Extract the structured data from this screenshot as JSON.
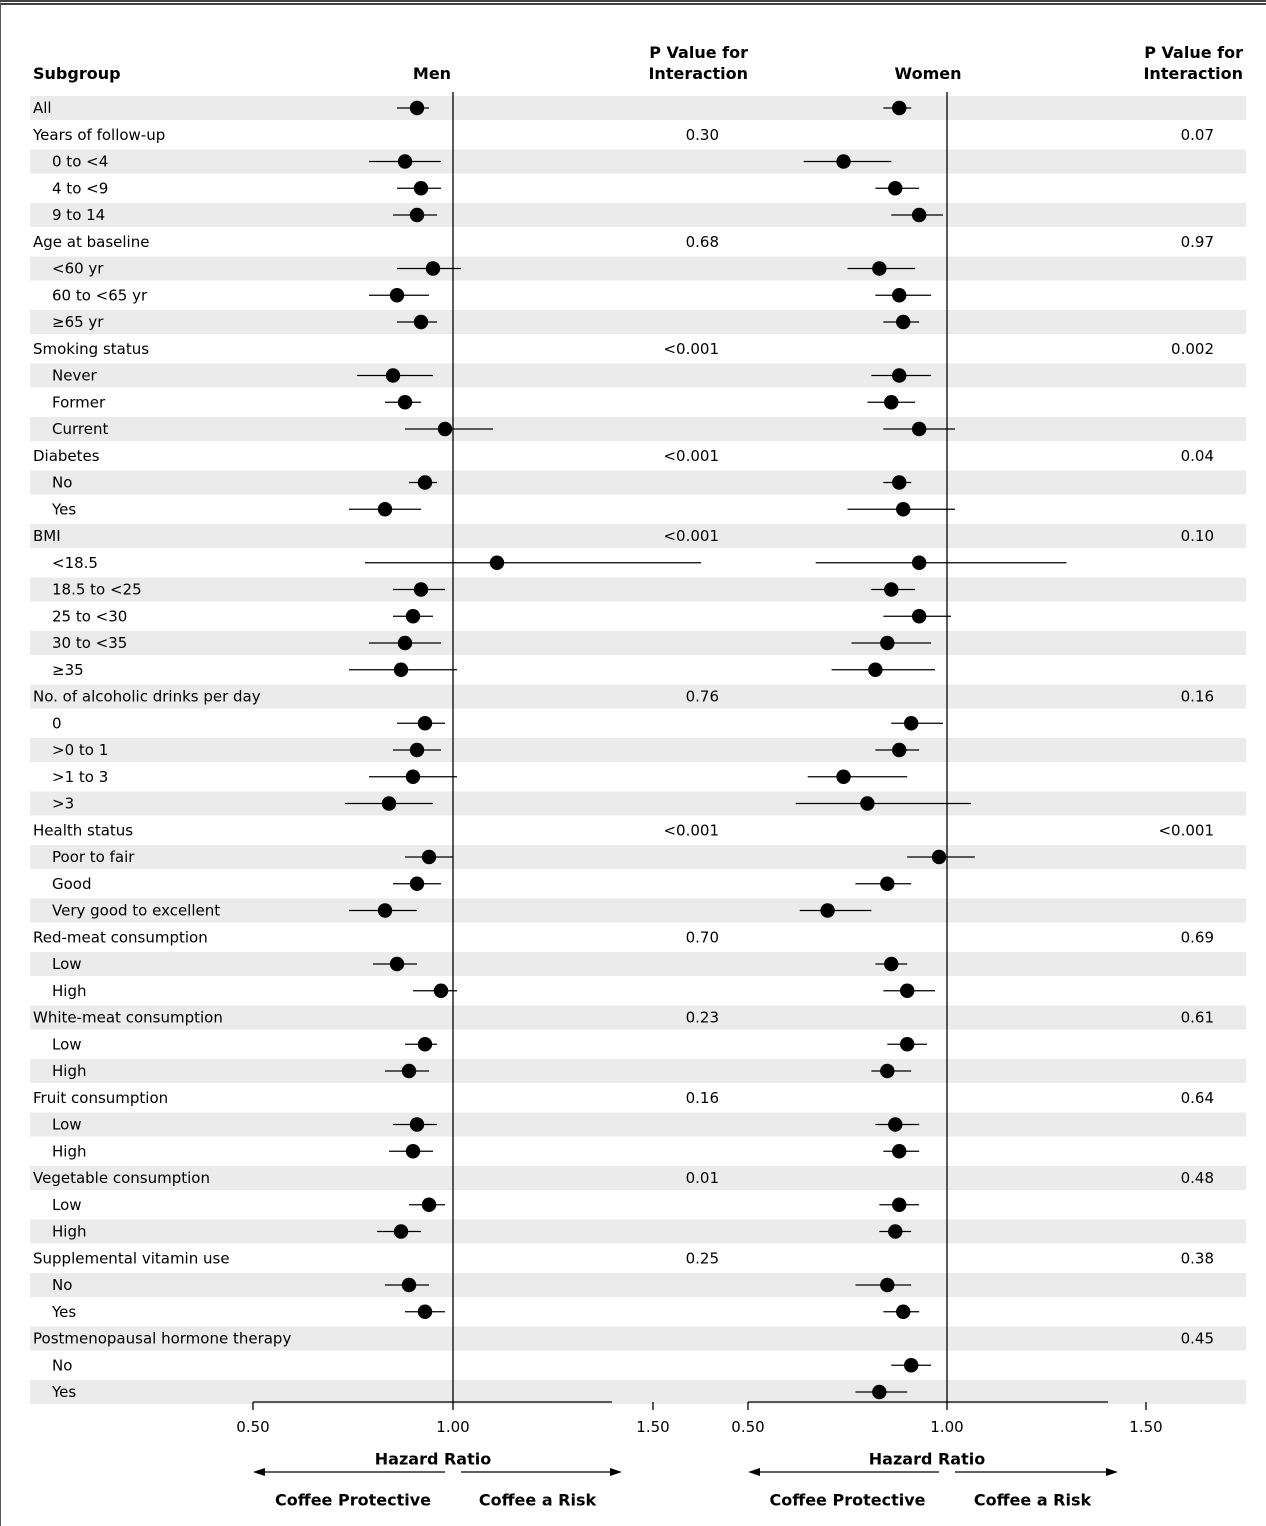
{
  "headers": {
    "subgroup": "Subgroup",
    "men": "Men",
    "women": "Women",
    "p_men_line1": "P Value for",
    "p_men_line2": "Interaction",
    "p_women_line1": "P Value for",
    "p_women_line2": "Interaction"
  },
  "axis": {
    "ticks": [
      "0.50",
      "1.00",
      "1.50"
    ],
    "tick_values": [
      0.5,
      1.0,
      1.5
    ],
    "xlabel": "Hazard Ratio",
    "left_arrow_label": "Coffee Protective",
    "right_arrow_label": "Coffee a Risk",
    "reference": 1.0,
    "xlim": [
      0.5,
      1.65
    ]
  },
  "colors": {
    "stripe": "#ebebeb",
    "ink": "#000000",
    "frame": "#444444"
  },
  "chart_data": {
    "type": "forest",
    "xlabel": "Hazard Ratio",
    "panels": [
      "Men",
      "Women"
    ],
    "rows": [
      {
        "label": "All",
        "indent": 0,
        "p_men": "",
        "p_women": "",
        "men": [
          0.91,
          0.86,
          0.94
        ],
        "women": [
          0.88,
          0.84,
          0.91
        ]
      },
      {
        "label": "Years of follow-up",
        "indent": 0,
        "p_men": "0.30",
        "p_women": "0.07",
        "men": null,
        "women": null
      },
      {
        "label": "0 to <4",
        "indent": 1,
        "p_men": "",
        "p_women": "",
        "men": [
          0.88,
          0.79,
          0.97
        ],
        "women": [
          0.74,
          0.64,
          0.86
        ]
      },
      {
        "label": "4 to <9",
        "indent": 1,
        "p_men": "",
        "p_women": "",
        "men": [
          0.92,
          0.86,
          0.97
        ],
        "women": [
          0.87,
          0.82,
          0.93
        ]
      },
      {
        "label": "9 to 14",
        "indent": 1,
        "p_men": "",
        "p_women": "",
        "men": [
          0.91,
          0.85,
          0.96
        ],
        "women": [
          0.93,
          0.86,
          0.99
        ]
      },
      {
        "label": "Age at baseline",
        "indent": 0,
        "p_men": "0.68",
        "p_women": "0.97",
        "men": null,
        "women": null
      },
      {
        "label": "<60 yr",
        "indent": 1,
        "p_men": "",
        "p_women": "",
        "men": [
          0.95,
          0.86,
          1.02
        ],
        "women": [
          0.83,
          0.75,
          0.92
        ]
      },
      {
        "label": "60 to <65 yr",
        "indent": 1,
        "p_men": "",
        "p_women": "",
        "men": [
          0.86,
          0.79,
          0.94
        ],
        "women": [
          0.88,
          0.82,
          0.96
        ]
      },
      {
        "label": "≥65 yr",
        "indent": 1,
        "p_men": "",
        "p_women": "",
        "men": [
          0.92,
          0.86,
          0.96
        ],
        "women": [
          0.89,
          0.84,
          0.93
        ]
      },
      {
        "label": "Smoking status",
        "indent": 0,
        "p_men": "<0.001",
        "p_women": "0.002",
        "men": null,
        "women": null
      },
      {
        "label": "Never",
        "indent": 1,
        "p_men": "",
        "p_women": "",
        "men": [
          0.85,
          0.76,
          0.95
        ],
        "women": [
          0.88,
          0.81,
          0.96
        ]
      },
      {
        "label": "Former",
        "indent": 1,
        "p_men": "",
        "p_women": "",
        "men": [
          0.88,
          0.83,
          0.92
        ],
        "women": [
          0.86,
          0.8,
          0.92
        ]
      },
      {
        "label": "Current",
        "indent": 1,
        "p_men": "",
        "p_women": "",
        "men": [
          0.98,
          0.88,
          1.1
        ],
        "women": [
          0.93,
          0.84,
          1.02
        ]
      },
      {
        "label": "Diabetes",
        "indent": 0,
        "p_men": "<0.001",
        "p_women": "0.04",
        "men": null,
        "women": null
      },
      {
        "label": "No",
        "indent": 1,
        "p_men": "",
        "p_women": "",
        "men": [
          0.93,
          0.89,
          0.96
        ],
        "women": [
          0.88,
          0.84,
          0.91
        ]
      },
      {
        "label": "Yes",
        "indent": 1,
        "p_men": "",
        "p_women": "",
        "men": [
          0.83,
          0.74,
          0.92
        ],
        "women": [
          0.89,
          0.75,
          1.02
        ]
      },
      {
        "label": "BMI",
        "indent": 0,
        "p_men": "<0.001",
        "p_women": "0.10",
        "men": null,
        "women": null
      },
      {
        "label": "<18.5",
        "indent": 1,
        "p_men": "",
        "p_women": "",
        "men": [
          1.11,
          0.78,
          1.62
        ],
        "women": [
          0.93,
          0.67,
          1.3
        ]
      },
      {
        "label": "18.5 to <25",
        "indent": 1,
        "p_men": "",
        "p_women": "",
        "men": [
          0.92,
          0.85,
          0.98
        ],
        "women": [
          0.86,
          0.81,
          0.92
        ]
      },
      {
        "label": "25 to <30",
        "indent": 1,
        "p_men": "",
        "p_women": "",
        "men": [
          0.9,
          0.85,
          0.95
        ],
        "women": [
          0.93,
          0.84,
          1.01
        ]
      },
      {
        "label": "30 to <35",
        "indent": 1,
        "p_men": "",
        "p_women": "",
        "men": [
          0.88,
          0.79,
          0.97
        ],
        "women": [
          0.85,
          0.76,
          0.96
        ]
      },
      {
        "label": "≥35",
        "indent": 1,
        "p_men": "",
        "p_women": "",
        "men": [
          0.87,
          0.74,
          1.01
        ],
        "women": [
          0.82,
          0.71,
          0.97
        ]
      },
      {
        "label": "No. of alcoholic drinks per day",
        "indent": 0,
        "p_men": "0.76",
        "p_women": "0.16",
        "men": null,
        "women": null
      },
      {
        "label": "0",
        "indent": 1,
        "p_men": "",
        "p_women": "",
        "men": [
          0.93,
          0.86,
          0.98
        ],
        "women": [
          0.91,
          0.86,
          0.99
        ]
      },
      {
        "label": ">0 to 1",
        "indent": 1,
        "p_men": "",
        "p_women": "",
        "men": [
          0.91,
          0.85,
          0.97
        ],
        "women": [
          0.88,
          0.82,
          0.93
        ]
      },
      {
        "label": ">1 to 3",
        "indent": 1,
        "p_men": "",
        "p_women": "",
        "men": [
          0.9,
          0.79,
          1.01
        ],
        "women": [
          0.74,
          0.65,
          0.9
        ]
      },
      {
        "label": ">3",
        "indent": 1,
        "p_men": "",
        "p_women": "",
        "men": [
          0.84,
          0.73,
          0.95
        ],
        "women": [
          0.8,
          0.62,
          1.06
        ]
      },
      {
        "label": "Health status",
        "indent": 0,
        "p_men": "<0.001",
        "p_women": "<0.001",
        "men": null,
        "women": null
      },
      {
        "label": "Poor to fair",
        "indent": 1,
        "p_men": "",
        "p_women": "",
        "men": [
          0.94,
          0.88,
          1.0
        ],
        "women": [
          0.98,
          0.9,
          1.07
        ]
      },
      {
        "label": "Good",
        "indent": 1,
        "p_men": "",
        "p_women": "",
        "men": [
          0.91,
          0.85,
          0.97
        ],
        "women": [
          0.85,
          0.77,
          0.91
        ]
      },
      {
        "label": "Very good to excellent",
        "indent": 1,
        "p_men": "",
        "p_women": "",
        "men": [
          0.83,
          0.74,
          0.91
        ],
        "women": [
          0.7,
          0.63,
          0.81
        ]
      },
      {
        "label": "Red-meat consumption",
        "indent": 0,
        "p_men": "0.70",
        "p_women": "0.69",
        "men": null,
        "women": null
      },
      {
        "label": "Low",
        "indent": 1,
        "p_men": "",
        "p_women": "",
        "men": [
          0.86,
          0.8,
          0.91
        ],
        "women": [
          0.86,
          0.82,
          0.9
        ]
      },
      {
        "label": "High",
        "indent": 1,
        "p_men": "",
        "p_women": "",
        "men": [
          0.97,
          0.9,
          1.01
        ],
        "women": [
          0.9,
          0.84,
          0.97
        ]
      },
      {
        "label": "White-meat consumption",
        "indent": 0,
        "p_men": "0.23",
        "p_women": "0.61",
        "men": null,
        "women": null
      },
      {
        "label": "Low",
        "indent": 1,
        "p_men": "",
        "p_women": "",
        "men": [
          0.93,
          0.88,
          0.96
        ],
        "women": [
          0.9,
          0.85,
          0.95
        ]
      },
      {
        "label": "High",
        "indent": 1,
        "p_men": "",
        "p_women": "",
        "men": [
          0.89,
          0.83,
          0.94
        ],
        "women": [
          0.85,
          0.81,
          0.91
        ]
      },
      {
        "label": "Fruit consumption",
        "indent": 0,
        "p_men": "0.16",
        "p_women": "0.64",
        "men": null,
        "women": null
      },
      {
        "label": "Low",
        "indent": 1,
        "p_men": "",
        "p_women": "",
        "men": [
          0.91,
          0.85,
          0.96
        ],
        "women": [
          0.87,
          0.82,
          0.93
        ]
      },
      {
        "label": "High",
        "indent": 1,
        "p_men": "",
        "p_women": "",
        "men": [
          0.9,
          0.84,
          0.95
        ],
        "women": [
          0.88,
          0.84,
          0.93
        ]
      },
      {
        "label": "Vegetable consumption",
        "indent": 0,
        "p_men": "0.01",
        "p_women": "0.48",
        "men": null,
        "women": null
      },
      {
        "label": "Low",
        "indent": 1,
        "p_men": "",
        "p_women": "",
        "men": [
          0.94,
          0.89,
          0.98
        ],
        "women": [
          0.88,
          0.83,
          0.93
        ]
      },
      {
        "label": "High",
        "indent": 1,
        "p_men": "",
        "p_women": "",
        "men": [
          0.87,
          0.81,
          0.92
        ],
        "women": [
          0.87,
          0.83,
          0.91
        ]
      },
      {
        "label": "Supplemental vitamin use",
        "indent": 0,
        "p_men": "0.25",
        "p_women": "0.38",
        "men": null,
        "women": null
      },
      {
        "label": "No",
        "indent": 1,
        "p_men": "",
        "p_women": "",
        "men": [
          0.89,
          0.83,
          0.94
        ],
        "women": [
          0.85,
          0.77,
          0.91
        ]
      },
      {
        "label": "Yes",
        "indent": 1,
        "p_men": "",
        "p_women": "",
        "men": [
          0.93,
          0.88,
          0.98
        ],
        "women": [
          0.89,
          0.84,
          0.93
        ]
      },
      {
        "label": "Postmenopausal hormone therapy",
        "indent": 0,
        "p_men": "",
        "p_women": "0.45",
        "men": null,
        "women": null
      },
      {
        "label": "No",
        "indent": 1,
        "p_men": "",
        "p_women": "",
        "men": null,
        "women": [
          0.91,
          0.86,
          0.96
        ]
      },
      {
        "label": "Yes",
        "indent": 1,
        "p_men": "",
        "p_women": "",
        "men": null,
        "women": [
          0.83,
          0.77,
          0.9
        ]
      }
    ]
  }
}
